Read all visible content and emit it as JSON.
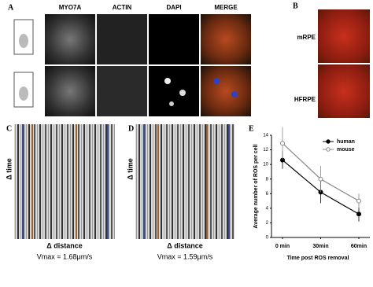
{
  "panels": {
    "A": {
      "label": "A",
      "columns": [
        "MYO7A",
        "ACTIN",
        "DAPI",
        "MERGE"
      ]
    },
    "B": {
      "label": "B",
      "rows": [
        "mRPE",
        "HFRPE"
      ]
    },
    "C": {
      "label": "C",
      "y_label": "Δ time",
      "x_label": "Δ distance",
      "caption": "Vmax = 1.68μm/s"
    },
    "D": {
      "label": "D",
      "y_label": "Δ time",
      "x_label": "Δ distance",
      "caption": "Vmax = 1.59μm/s"
    }
  },
  "chart_data": {
    "type": "line",
    "label": "E",
    "x_label": "Time post ROS removal",
    "y_label": "Average number of ROS per cell",
    "categories": [
      "0 min",
      "30min",
      "60min"
    ],
    "series": [
      {
        "name": "human",
        "color": "#000000",
        "marker": "filled",
        "values": [
          10.6,
          6.2,
          3.2
        ],
        "errors": [
          1.2,
          1.5,
          1.0
        ]
      },
      {
        "name": "mouse",
        "color": "#888888",
        "marker": "open",
        "values": [
          12.9,
          8.0,
          5.0
        ],
        "errors": [
          2.2,
          1.8,
          1.0
        ]
      }
    ],
    "ylim": [
      0,
      14
    ],
    "yticks": [
      0,
      2,
      4,
      6,
      8,
      10,
      12,
      14
    ],
    "legend": "upper right"
  }
}
